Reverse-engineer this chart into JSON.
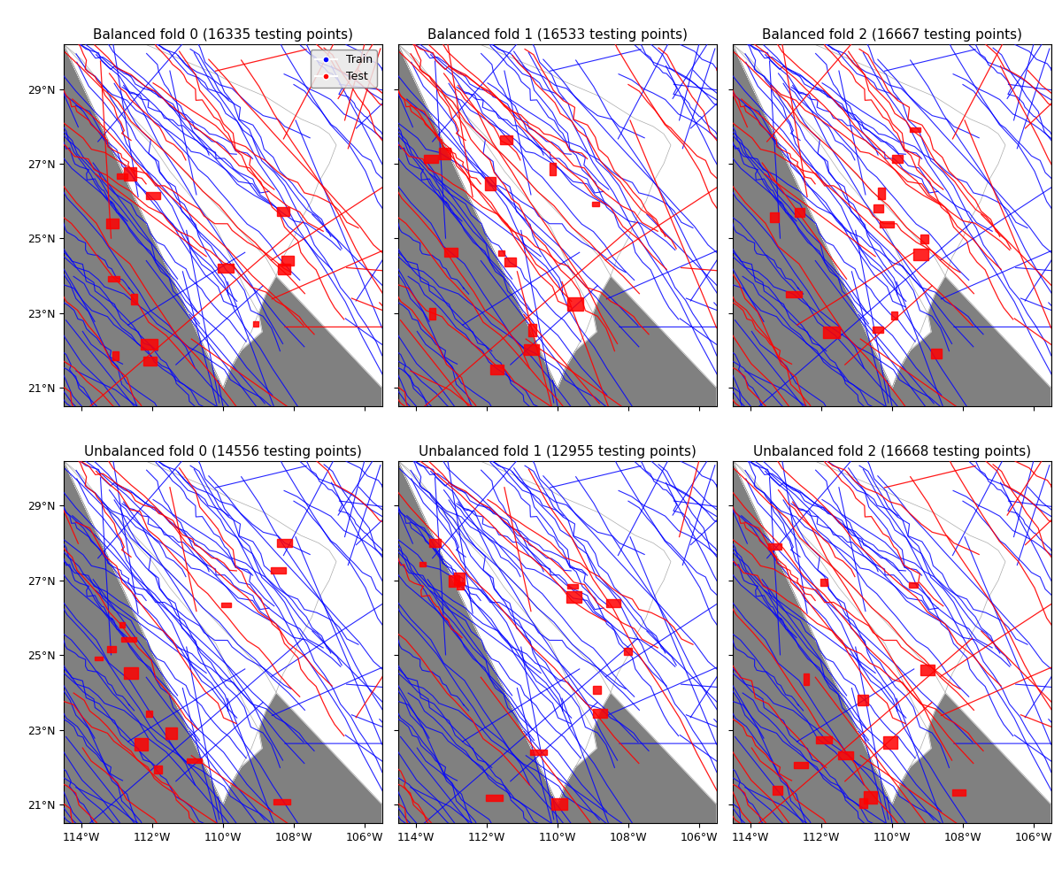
{
  "titles": [
    "Balanced fold 0 (16335 testing points)",
    "Balanced fold 1 (16533 testing points)",
    "Balanced fold 2 (16667 testing points)",
    "Unbalanced fold 0 (14556 testing points)",
    "Unbalanced fold 1 (12955 testing points)",
    "Unbalanced fold 2 (16668 testing points)"
  ],
  "lon_min": -114.5,
  "lon_max": -105.5,
  "lat_min": 20.5,
  "lat_max": 30.2,
  "lon_ticks": [
    -114,
    -112,
    -110,
    -108,
    -106
  ],
  "lat_ticks": [
    21,
    23,
    25,
    27,
    29
  ],
  "lon_labels": [
    "114°W",
    "112°W",
    "110°W",
    "108°W",
    "106°W"
  ],
  "lat_labels": [
    "21°N",
    "23°N",
    "25°N",
    "27°N",
    "29°N"
  ],
  "background_color": "#808080",
  "land_color": "#ffffff",
  "train_color": "#0000ff",
  "test_color": "#ff0000",
  "nrows": 2,
  "ncols": 3,
  "figsize": [
    12,
    10
  ],
  "dpi": 100
}
